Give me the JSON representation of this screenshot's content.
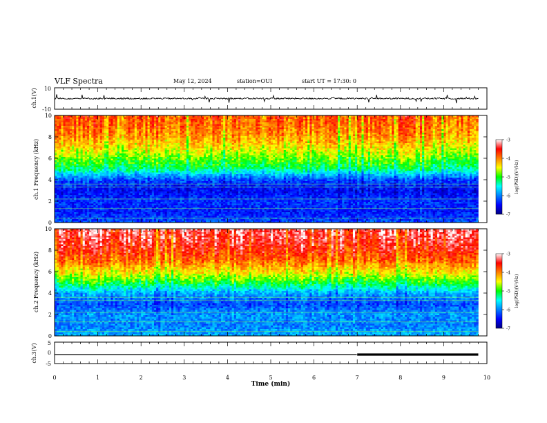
{
  "header": {
    "title": "VLF Spectra",
    "date": "May 12, 2024",
    "station": "station=OUI",
    "start": "start UT =  17:30: 0"
  },
  "chart_data": [
    {
      "type": "line",
      "panel": "ch1-waveform",
      "ylabel": "ch.1(V)",
      "ylim": [
        -10,
        10
      ],
      "yticks": [
        "10",
        "-10"
      ],
      "x": [
        0,
        0.5,
        1,
        1.5,
        2,
        2.5,
        3,
        3.5,
        4,
        4.5,
        5,
        5.5,
        6,
        6.5,
        7,
        7.5,
        8,
        8.5,
        9,
        9.5,
        9.8
      ],
      "values": [
        0,
        0,
        0,
        0,
        0,
        0,
        0,
        0,
        0,
        0,
        0,
        0,
        0,
        0,
        0,
        0,
        0,
        0,
        0,
        0,
        0
      ]
    },
    {
      "type": "heatmap",
      "panel": "ch1-spectrogram",
      "ylabel": "ch.1 Frequency (kHz)",
      "ylim": [
        0,
        10
      ],
      "yticks": [
        "0",
        "2",
        "4",
        "6",
        "8",
        "10"
      ],
      "colorbar": {
        "label": "log(PSD)(V²/Hz)",
        "min": -7,
        "max": -3,
        "ticks": [
          "-3",
          "-4",
          "-5",
          "-6",
          "-7"
        ]
      },
      "freq_profile_kHz": [
        0,
        1,
        2,
        3,
        4,
        5,
        6,
        7,
        8,
        9,
        10
      ],
      "log_psd_profile": [
        -6.2,
        -6.4,
        -6.3,
        -6.5,
        -6.2,
        -5.2,
        -4.8,
        -4.4,
        -4.1,
        -3.9,
        -3.8
      ]
    },
    {
      "type": "heatmap",
      "panel": "ch2-spectrogram",
      "ylabel": "ch.2 Frequency (kHz)",
      "ylim": [
        0,
        10
      ],
      "yticks": [
        "0",
        "2",
        "4",
        "6",
        "8",
        "10"
      ],
      "colorbar": {
        "label": "log(PSD)(V²/Hz)",
        "min": -7,
        "max": -3,
        "ticks": [
          "-3",
          "-4",
          "-5",
          "-6",
          "-7"
        ]
      },
      "freq_profile_kHz": [
        0,
        1,
        2,
        3,
        4,
        5,
        6,
        7,
        8,
        9,
        10
      ],
      "log_psd_profile": [
        -5.8,
        -6.0,
        -5.9,
        -6.2,
        -5.8,
        -5.0,
        -4.4,
        -3.9,
        -3.6,
        -3.4,
        -3.3
      ]
    },
    {
      "type": "line",
      "panel": "ch3-waveform",
      "ylabel": "ch.3(V)",
      "ylim": [
        -5,
        5
      ],
      "yticks": [
        "5",
        "0",
        "-5"
      ],
      "x": [
        0,
        6.99,
        7.0,
        9.8
      ],
      "values": [
        -0.8,
        -0.8,
        -0.8,
        -0.8
      ]
    }
  ],
  "xaxis": {
    "label": "Time (min)",
    "xlim": [
      0,
      10
    ],
    "ticks": [
      "0",
      "1",
      "2",
      "3",
      "4",
      "5",
      "6",
      "7",
      "8",
      "9",
      "10"
    ]
  }
}
